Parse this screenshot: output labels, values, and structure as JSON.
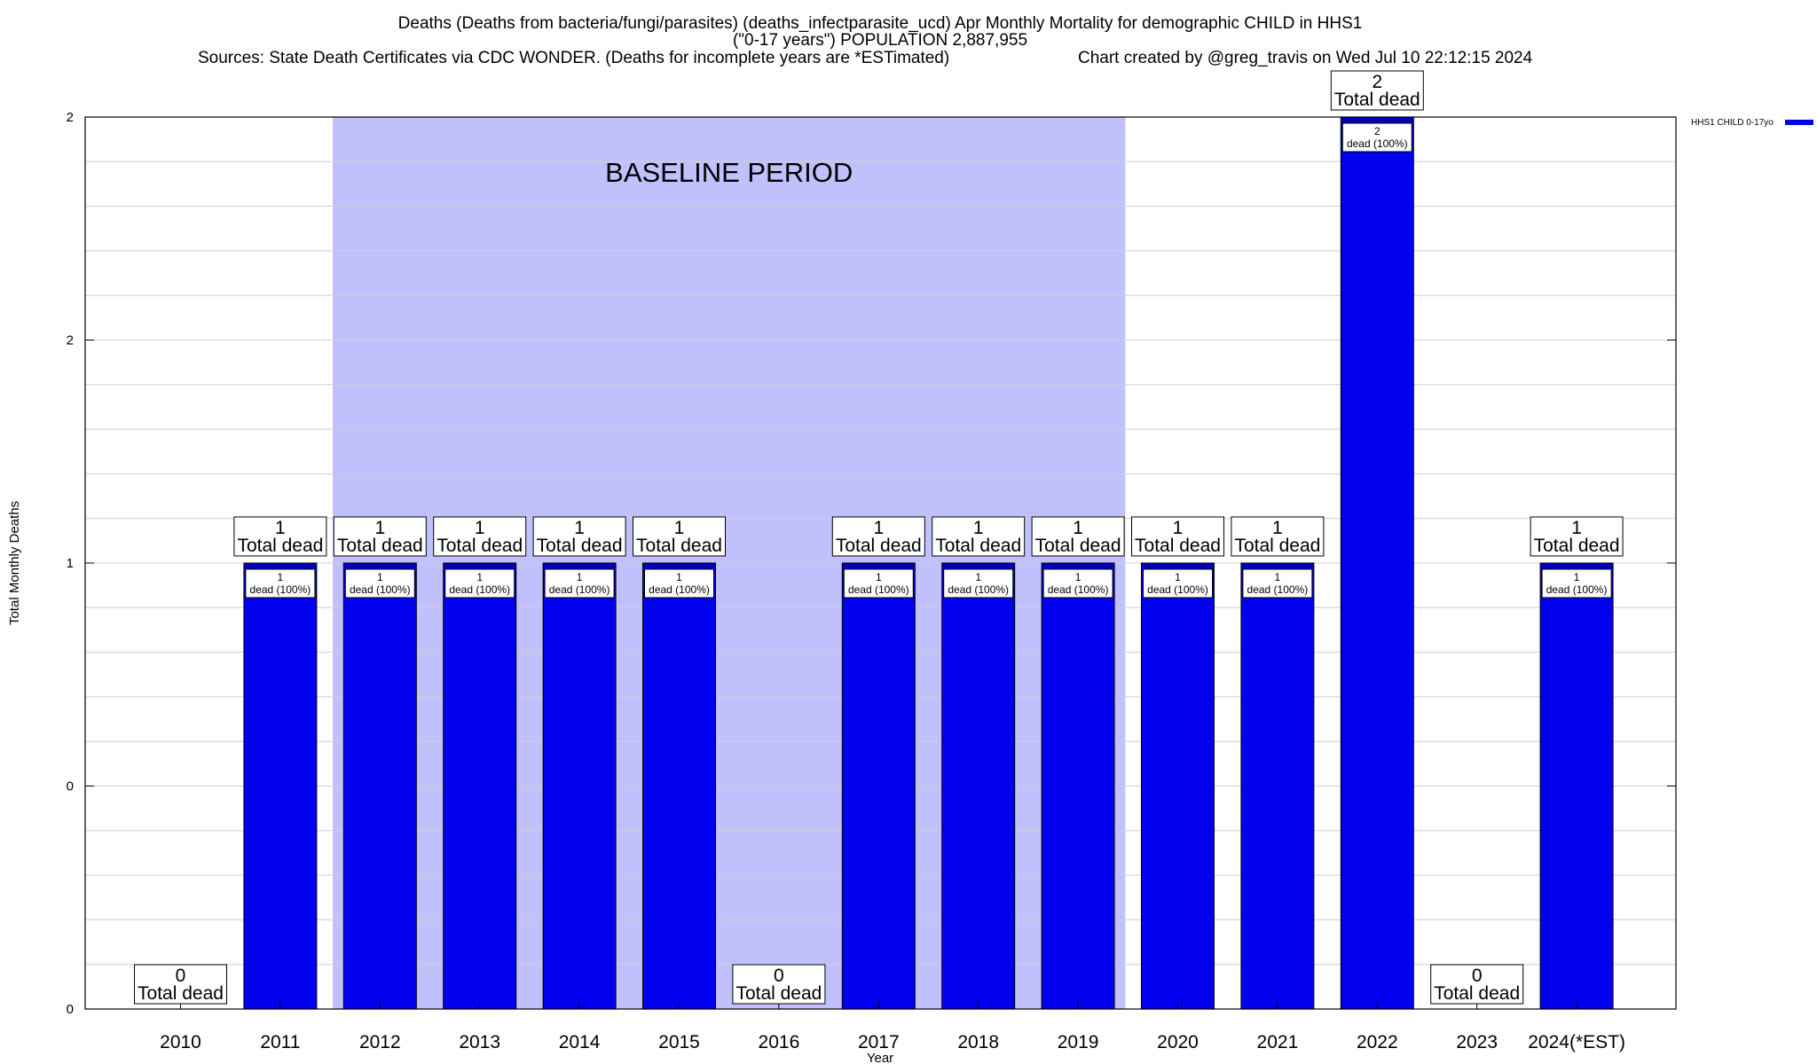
{
  "chart_data": {
    "type": "bar",
    "title_line1": "Deaths (Deaths from bacteria/fungi/parasites) (deaths_infectparasite_ucd) Apr Monthly Mortality for demographic CHILD in HHS1",
    "title_line2": "(\"0-17 years\") POPULATION 2,887,955",
    "sources": "Sources: State Death Certificates via CDC WONDER. (Deaths for incomplete years are *ESTimated)",
    "credit": "Chart created by @greg_travis on Wed Jul 10 22:12:15 2024",
    "xlabel": "Year",
    "ylabel": "Total Monthly Deaths",
    "ylim": [
      0,
      2
    ],
    "ytick_labels": [
      "0",
      "0",
      "1",
      "2",
      "2"
    ],
    "categories": [
      "2010",
      "2011",
      "2012",
      "2013",
      "2014",
      "2015",
      "2016",
      "2017",
      "2018",
      "2019",
      "2020",
      "2021",
      "2022",
      "2023",
      "2024(*EST)"
    ],
    "series": [
      {
        "name": "HHS1 CHILD 0-17yo",
        "color": "#0000ee",
        "values": [
          0,
          1,
          1,
          1,
          1,
          1,
          0,
          1,
          1,
          1,
          1,
          1,
          2,
          0,
          1
        ]
      }
    ],
    "total_label_suffix": "Total dead",
    "inner_label_suffix": "dead (100%)",
    "baseline": {
      "label": "BASELINE PERIOD",
      "from": "2012",
      "to": "2019",
      "color": "#c0c0fc"
    },
    "grid": true,
    "legend_position": "top-right"
  }
}
